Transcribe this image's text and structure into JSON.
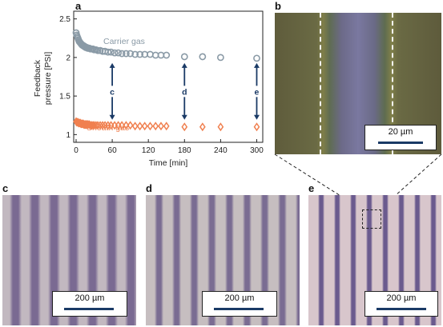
{
  "panel_labels": {
    "a": "a",
    "b": "b",
    "c": "c",
    "d": "d",
    "e": "e"
  },
  "chart_data": {
    "type": "scatter",
    "xlabel": "Time [min]",
    "ylabel": [
      "Feedback",
      "pressure [PSI]"
    ],
    "xlim": [
      0,
      310
    ],
    "ylim": [
      0.9,
      2.6
    ],
    "xticks": [
      "0",
      "60",
      "120",
      "180",
      "240",
      "300"
    ],
    "yticks": [
      "1",
      "1.5",
      "2",
      "2.5"
    ],
    "grid": false,
    "series": [
      {
        "name": "Carrier gas",
        "color": "#8a9aa6",
        "marker": "circle",
        "x": [
          0,
          1,
          2,
          3,
          4,
          5,
          6,
          7,
          8,
          9,
          10,
          11,
          12,
          13,
          14,
          15,
          16,
          17,
          18,
          19,
          20,
          22,
          24,
          26,
          28,
          30,
          33,
          36,
          40,
          44,
          48,
          53,
          58,
          64,
          70,
          76,
          83,
          90,
          98,
          106,
          114,
          123,
          132,
          141,
          150,
          180,
          210,
          240,
          300
        ],
        "y": [
          2.32,
          2.29,
          2.27,
          2.25,
          2.23,
          2.21,
          2.2,
          2.19,
          2.18,
          2.17,
          2.16,
          2.16,
          2.15,
          2.15,
          2.14,
          2.14,
          2.13,
          2.13,
          2.13,
          2.12,
          2.12,
          2.12,
          2.11,
          2.11,
          2.11,
          2.1,
          2.1,
          2.09,
          2.09,
          2.08,
          2.08,
          2.07,
          2.07,
          2.06,
          2.06,
          2.05,
          2.05,
          2.05,
          2.04,
          2.04,
          2.04,
          2.04,
          2.03,
          2.03,
          2.03,
          2.01,
          2.01,
          2.0,
          1.99
        ]
      },
      {
        "name": "Sheath gas",
        "color": "#f08050",
        "marker": "diamond",
        "x": [
          0,
          1,
          2,
          3,
          4,
          5,
          6,
          7,
          8,
          9,
          10,
          11,
          12,
          13,
          14,
          15,
          16,
          17,
          18,
          19,
          20,
          22,
          24,
          26,
          28,
          30,
          33,
          36,
          40,
          44,
          48,
          53,
          58,
          64,
          70,
          76,
          83,
          90,
          98,
          106,
          114,
          123,
          132,
          141,
          150,
          180,
          210,
          240,
          300
        ],
        "y": [
          1.17,
          1.16,
          1.16,
          1.16,
          1.15,
          1.15,
          1.15,
          1.15,
          1.14,
          1.14,
          1.14,
          1.14,
          1.14,
          1.13,
          1.13,
          1.13,
          1.13,
          1.13,
          1.13,
          1.13,
          1.13,
          1.13,
          1.12,
          1.12,
          1.12,
          1.12,
          1.12,
          1.12,
          1.12,
          1.12,
          1.12,
          1.12,
          1.12,
          1.12,
          1.12,
          1.12,
          1.12,
          1.12,
          1.11,
          1.11,
          1.11,
          1.11,
          1.11,
          1.11,
          1.11,
          1.1,
          1.1,
          1.1,
          1.1
        ]
      }
    ],
    "annotations": [
      {
        "text": "c",
        "x": 60
      },
      {
        "text": "d",
        "x": 180
      },
      {
        "text": "e",
        "x": 300
      }
    ],
    "annotation_color": "#1a3a66"
  },
  "micrographs": {
    "b": {
      "scale": "20 µm"
    },
    "c": {
      "scale": "200 µm"
    },
    "d": {
      "scale": "200 µm"
    },
    "e": {
      "scale": "200 µm"
    }
  }
}
